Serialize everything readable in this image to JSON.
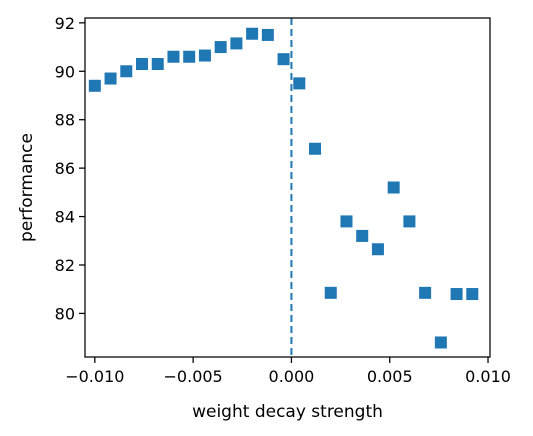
{
  "chart_data": {
    "type": "scatter",
    "title": "",
    "xlabel": "weight decay strength",
    "ylabel": "performance",
    "xlim": [
      -0.0105,
      0.0101
    ],
    "ylim": [
      78.2,
      92.2
    ],
    "x_ticks": [
      {
        "value": -0.01,
        "label": "−0.010"
      },
      {
        "value": -0.005,
        "label": "−0.005"
      },
      {
        "value": 0.0,
        "label": "0.000"
      },
      {
        "value": 0.005,
        "label": "0.005"
      },
      {
        "value": 0.01,
        "label": "0.010"
      }
    ],
    "y_ticks": [
      {
        "value": 80,
        "label": "80"
      },
      {
        "value": 82,
        "label": "82"
      },
      {
        "value": 84,
        "label": "84"
      },
      {
        "value": 86,
        "label": "86"
      },
      {
        "value": 88,
        "label": "88"
      },
      {
        "value": 90,
        "label": "90"
      },
      {
        "value": 92,
        "label": "92"
      }
    ],
    "grid": false,
    "marker_color": "#1f77b4",
    "marker": "square",
    "vline": {
      "x": 0.0,
      "style": "dashed",
      "color": "#1f77b4"
    },
    "series": [
      {
        "points": [
          {
            "x": -0.01,
            "y": 89.4
          },
          {
            "x": -0.0092,
            "y": 89.7
          },
          {
            "x": -0.0084,
            "y": 90.0
          },
          {
            "x": -0.0076,
            "y": 90.3
          },
          {
            "x": -0.0068,
            "y": 90.3
          },
          {
            "x": -0.006,
            "y": 90.6
          },
          {
            "x": -0.0052,
            "y": 90.6
          },
          {
            "x": -0.0044,
            "y": 90.65
          },
          {
            "x": -0.0036,
            "y": 91.0
          },
          {
            "x": -0.0028,
            "y": 91.15
          },
          {
            "x": -0.002,
            "y": 91.55
          },
          {
            "x": -0.0012,
            "y": 91.5
          },
          {
            "x": -0.0004,
            "y": 90.5
          },
          {
            "x": 0.0004,
            "y": 89.5
          },
          {
            "x": 0.0012,
            "y": 86.8
          },
          {
            "x": 0.002,
            "y": 80.85
          },
          {
            "x": 0.0028,
            "y": 83.8
          },
          {
            "x": 0.0036,
            "y": 83.2
          },
          {
            "x": 0.0044,
            "y": 82.65
          },
          {
            "x": 0.0052,
            "y": 85.2
          },
          {
            "x": 0.006,
            "y": 83.8
          },
          {
            "x": 0.0068,
            "y": 80.85
          },
          {
            "x": 0.0076,
            "y": 78.8
          },
          {
            "x": 0.0084,
            "y": 80.8
          },
          {
            "x": 0.0092,
            "y": 80.8
          }
        ]
      }
    ]
  }
}
